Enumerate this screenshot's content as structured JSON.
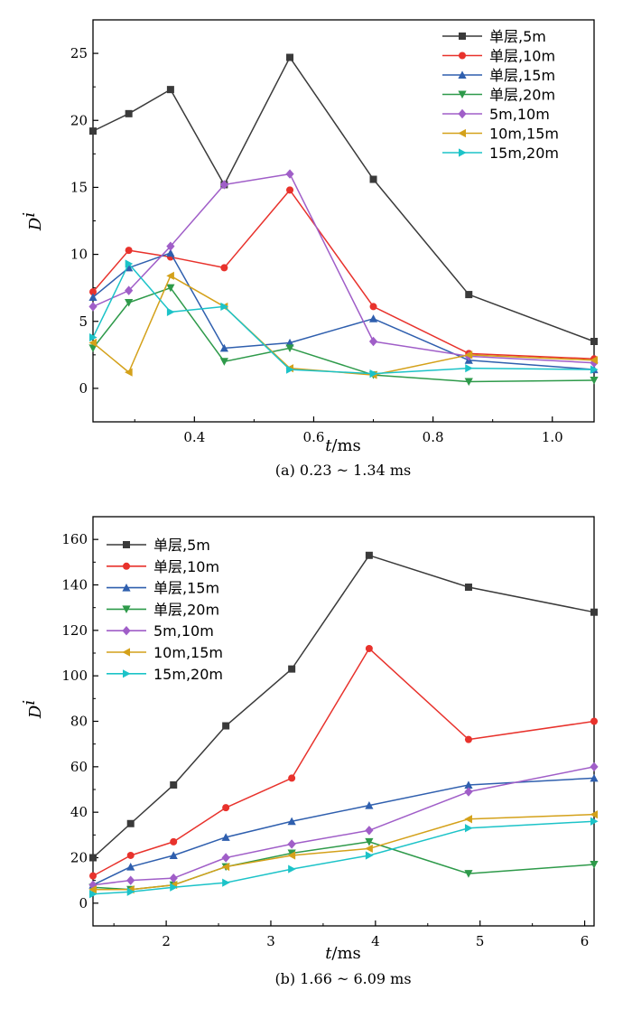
{
  "chart_data": [
    {
      "type": "line",
      "caption": "(a) 0.23 ~ 1.34 ms",
      "xlabel": "t",
      "xunit": "/ms",
      "ylabel": "D",
      "ylabel_sup": "i",
      "xlim": [
        0.23,
        1.07
      ],
      "ylim": [
        -2.5,
        27.5
      ],
      "xticks": [
        0.4,
        0.6,
        0.8,
        1.0
      ],
      "xtick_labels": [
        "0.4",
        "0.6",
        "0.8",
        "1.0"
      ],
      "yticks": [
        0,
        5,
        10,
        15,
        20,
        25
      ],
      "ytick_labels": [
        "0",
        "5",
        "10",
        "15",
        "20",
        "25"
      ],
      "legend_position": "top-right",
      "x": [
        0.23,
        0.29,
        0.36,
        0.45,
        0.56,
        0.7,
        0.86,
        1.07
      ],
      "series": [
        {
          "name": "单层,5m",
          "color": "#3a3a3a",
          "marker": "square",
          "values": [
            19.2,
            20.5,
            22.3,
            15.2,
            24.7,
            15.6,
            7.0,
            3.5
          ]
        },
        {
          "name": "单层,10m",
          "color": "#e8322c",
          "marker": "circle",
          "values": [
            7.2,
            10.3,
            9.8,
            9.0,
            14.8,
            6.1,
            2.6,
            2.2
          ]
        },
        {
          "name": "单层,15m",
          "color": "#2f5fae",
          "marker": "triangle-up",
          "values": [
            6.8,
            9.0,
            10.1,
            3.0,
            3.4,
            5.2,
            2.1,
            1.4
          ]
        },
        {
          "name": "单层,20m",
          "color": "#2e9a4a",
          "marker": "triangle-down",
          "values": [
            3.0,
            6.4,
            7.5,
            2.0,
            3.0,
            1.0,
            0.5,
            0.6
          ]
        },
        {
          "name": "5m,10m",
          "color": "#a05ec8",
          "marker": "diamond",
          "values": [
            6.1,
            7.3,
            10.6,
            15.2,
            16.0,
            3.5,
            2.4,
            1.9
          ]
        },
        {
          "name": "10m,15m",
          "color": "#d4a11a",
          "marker": "triangle-left",
          "values": [
            3.4,
            1.2,
            8.4,
            6.1,
            1.5,
            1.0,
            2.5,
            2.1
          ]
        },
        {
          "name": "15m,20m",
          "color": "#1cc3c8",
          "marker": "triangle-right",
          "values": [
            3.8,
            9.3,
            5.7,
            6.1,
            1.4,
            1.1,
            1.5,
            1.4
          ]
        }
      ]
    },
    {
      "type": "line",
      "caption": "(b) 1.66 ~ 6.09 ms",
      "xlabel": "t",
      "xunit": "/ms",
      "ylabel": "D",
      "ylabel_sup": "i",
      "xlim": [
        1.3,
        6.09
      ],
      "ylim": [
        -10,
        170
      ],
      "xticks": [
        2,
        3,
        4,
        5,
        6
      ],
      "xtick_labels": [
        "2",
        "3",
        "4",
        "5",
        "6"
      ],
      "yticks": [
        0,
        20,
        40,
        60,
        80,
        100,
        120,
        140,
        160
      ],
      "ytick_labels": [
        "0",
        "20",
        "40",
        "60",
        "80",
        "100",
        "120",
        "140",
        "160"
      ],
      "legend_position": "top-left",
      "x": [
        1.3,
        1.66,
        2.07,
        2.57,
        3.2,
        3.94,
        4.89,
        6.09
      ],
      "series": [
        {
          "name": "单层,5m",
          "color": "#3a3a3a",
          "marker": "square",
          "values": [
            20,
            35,
            52,
            78,
            103,
            153,
            139,
            128
          ]
        },
        {
          "name": "单层,10m",
          "color": "#e8322c",
          "marker": "circle",
          "values": [
            12,
            21,
            27,
            42,
            55,
            112,
            72,
            80
          ]
        },
        {
          "name": "单层,15m",
          "color": "#2f5fae",
          "marker": "triangle-up",
          "values": [
            8,
            16,
            21,
            29,
            36,
            43,
            52,
            55
          ]
        },
        {
          "name": "单层,20m",
          "color": "#2e9a4a",
          "marker": "triangle-down",
          "values": [
            7,
            6,
            8,
            16,
            22,
            27,
            13,
            17
          ]
        },
        {
          "name": "5m,10m",
          "color": "#a05ec8",
          "marker": "diamond",
          "values": [
            8,
            10,
            11,
            20,
            26,
            32,
            49,
            60
          ]
        },
        {
          "name": "10m,15m",
          "color": "#d4a11a",
          "marker": "triangle-left",
          "values": [
            6,
            6,
            8,
            16,
            21,
            24,
            37,
            39
          ]
        },
        {
          "name": "15m,20m",
          "color": "#1cc3c8",
          "marker": "triangle-right",
          "values": [
            4,
            5,
            7,
            9,
            15,
            21,
            33,
            36
          ]
        }
      ]
    }
  ]
}
